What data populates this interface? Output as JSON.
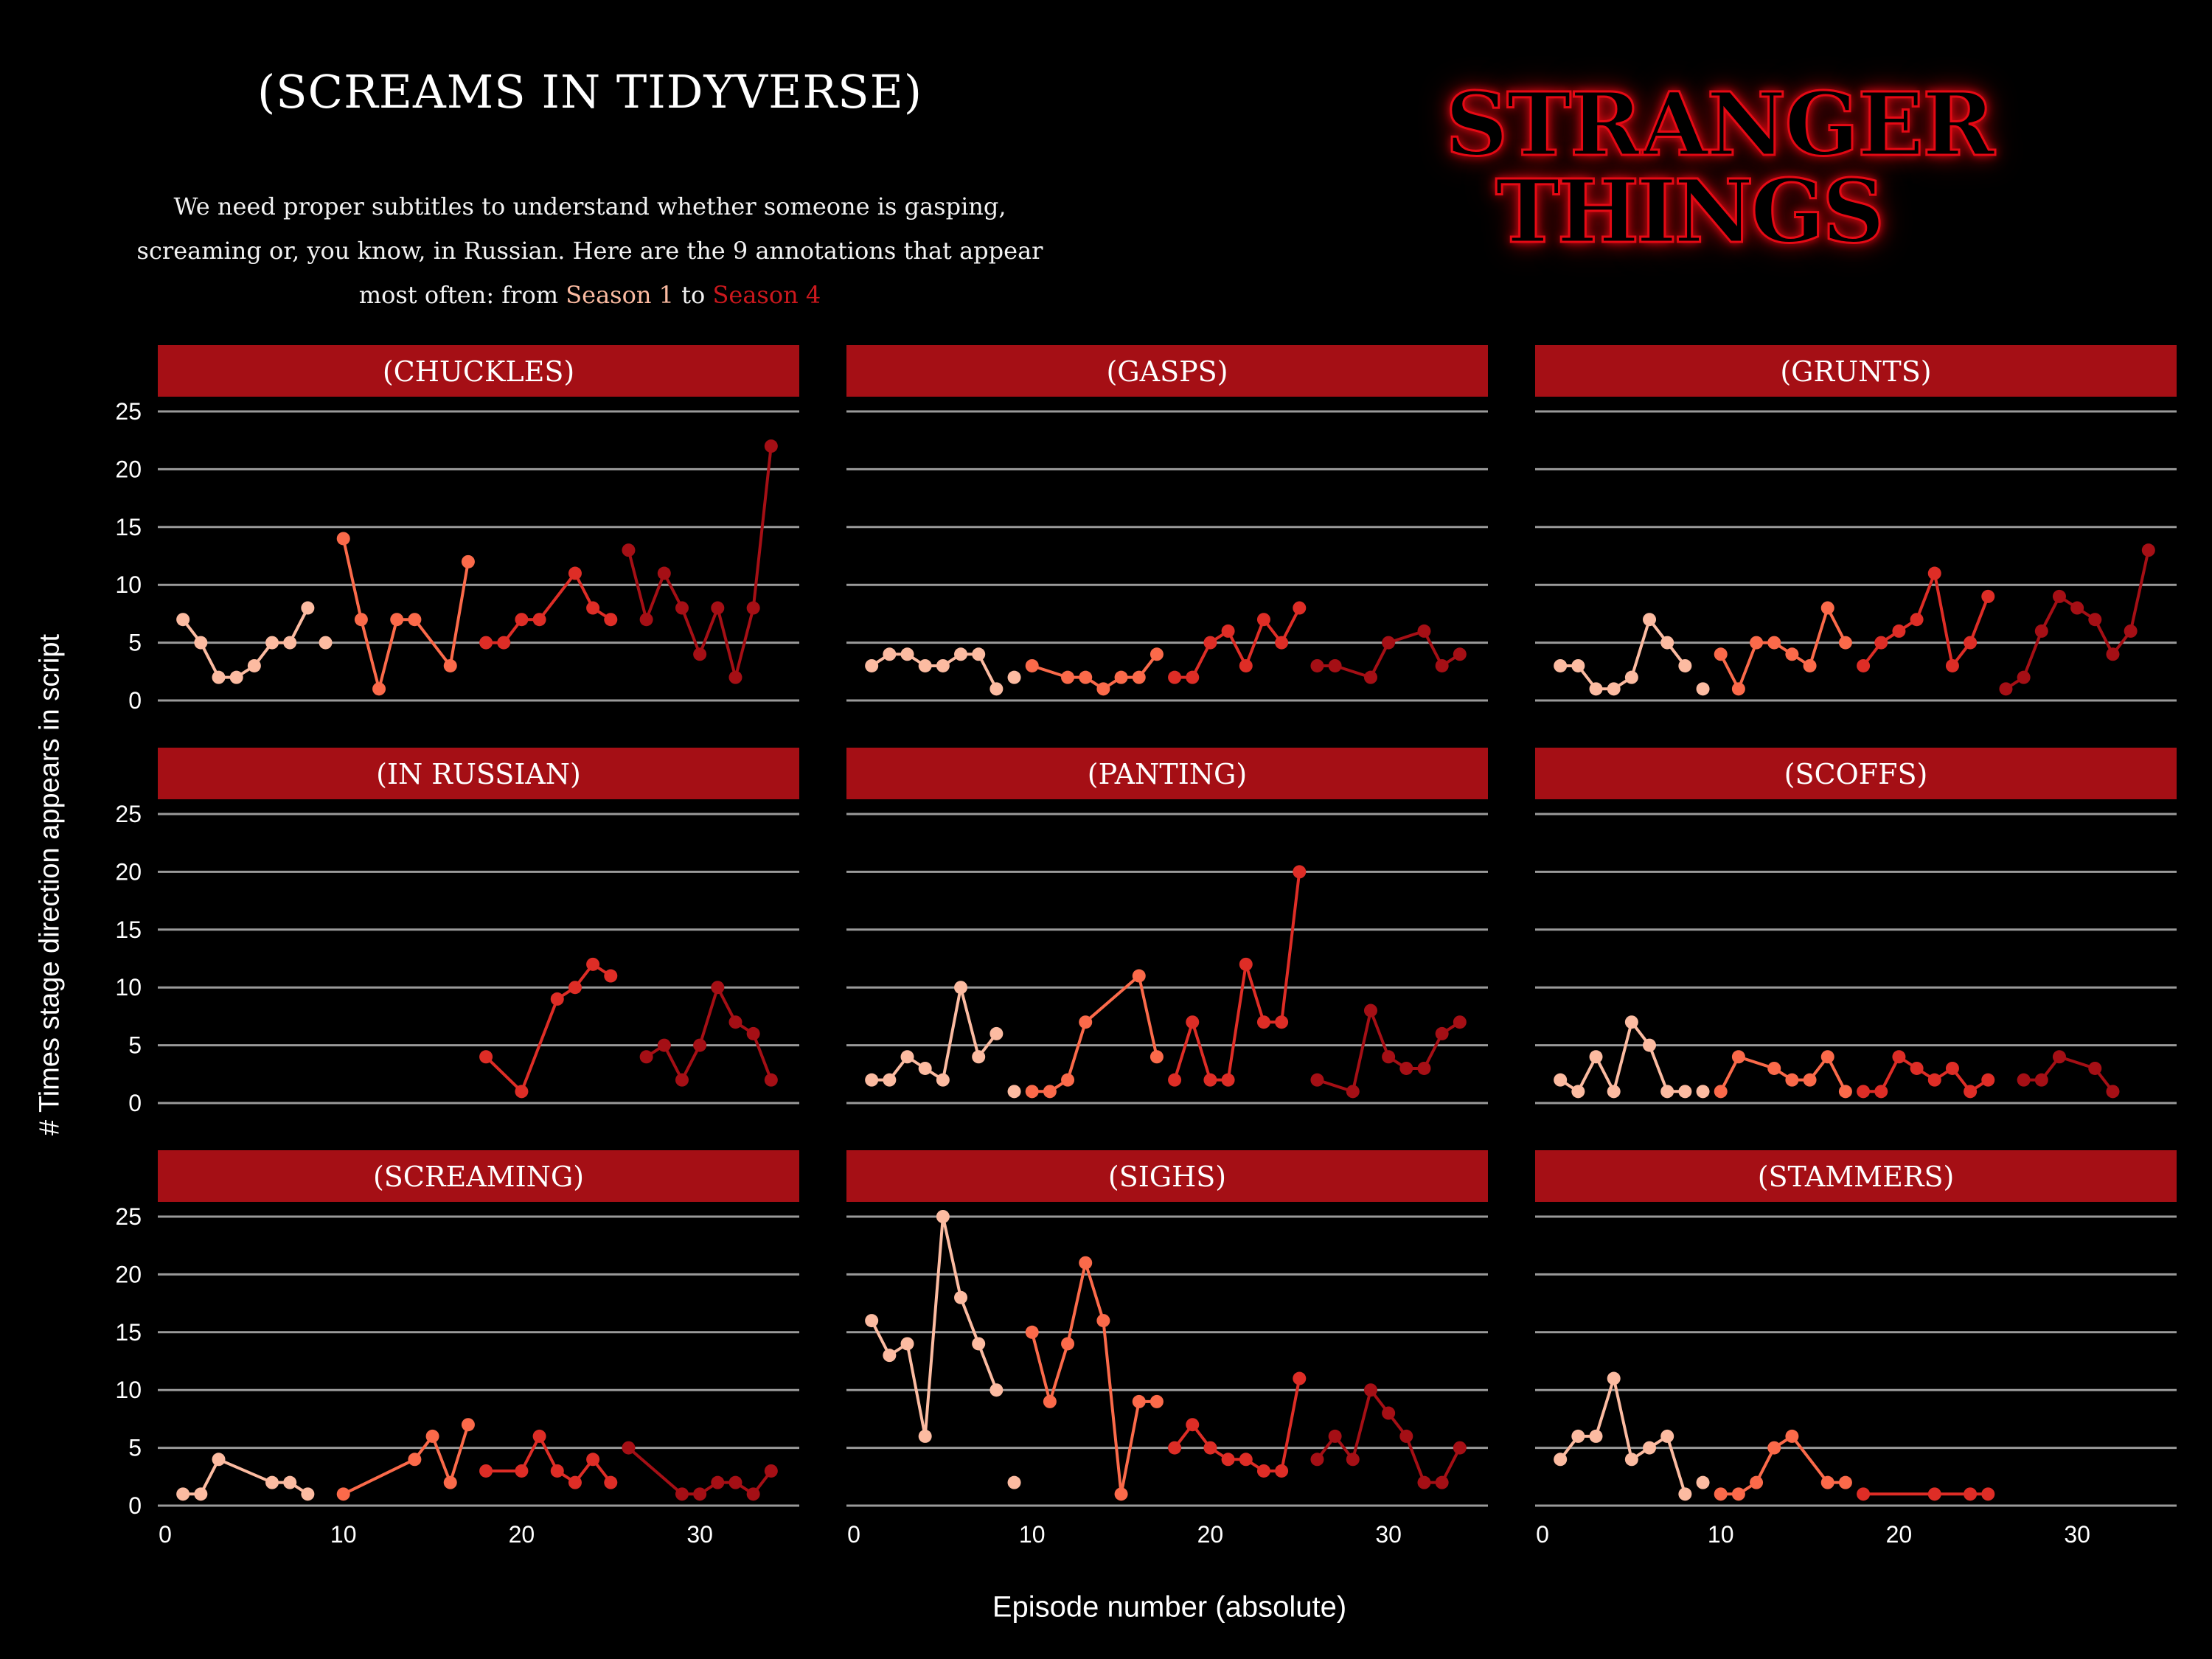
{
  "header": {
    "title": "(SCREAMS IN TIDYVERSE)",
    "subtitle_text": "We need proper subtitles to understand whether someone is gasping, screaming or, you know, in Russian. Here are the 9 annotations that appear most often: from",
    "season_first": "Season 1",
    "connector": "to",
    "season_last": "Season 4"
  },
  "logo": {
    "line1": "STRANGER",
    "line2": "THINGS"
  },
  "colors": {
    "background": "#000000",
    "strip": "#a50f15",
    "grid": "#9a9a9a",
    "season_colors": [
      "#fcbba1",
      "#fb6a4a",
      "#de2d26",
      "#a50f15"
    ]
  },
  "chart_data": {
    "type": "line",
    "layout": "facet-grid-3x3",
    "xlabel": "Episode number (absolute)",
    "ylabel": "# Times stage direction appears in script",
    "xlim": [
      0,
      35
    ],
    "ylim": [
      0,
      25
    ],
    "x_ticks": [
      0,
      10,
      20,
      30
    ],
    "y_ticks": [
      0,
      5,
      10,
      15,
      20,
      25
    ],
    "grid": "horizontal",
    "season_ranges": [
      [
        1,
        8
      ],
      [
        10,
        17
      ],
      [
        18,
        25
      ],
      [
        26,
        34
      ]
    ],
    "facets": [
      {
        "label": "(CHUCKLES)",
        "points": [
          [
            1,
            7
          ],
          [
            2,
            5
          ],
          [
            3,
            2
          ],
          [
            4,
            2
          ],
          [
            5,
            3
          ],
          [
            6,
            5
          ],
          [
            7,
            5
          ],
          [
            8,
            8
          ],
          [
            9,
            5
          ],
          [
            10,
            14
          ],
          [
            11,
            7
          ],
          [
            12,
            1
          ],
          [
            13,
            7
          ],
          [
            14,
            7
          ],
          [
            16,
            3
          ],
          [
            17,
            12
          ],
          [
            18,
            5
          ],
          [
            19,
            5
          ],
          [
            20,
            7
          ],
          [
            21,
            7
          ],
          [
            23,
            11
          ],
          [
            24,
            8
          ],
          [
            25,
            7
          ],
          [
            26,
            13
          ],
          [
            27,
            7
          ],
          [
            28,
            11
          ],
          [
            29,
            8
          ],
          [
            30,
            4
          ],
          [
            31,
            8
          ],
          [
            32,
            2
          ],
          [
            33,
            8
          ],
          [
            34,
            22
          ]
        ]
      },
      {
        "label": "(GASPS)",
        "points": [
          [
            1,
            3
          ],
          [
            2,
            4
          ],
          [
            3,
            4
          ],
          [
            4,
            3
          ],
          [
            5,
            3
          ],
          [
            6,
            4
          ],
          [
            7,
            4
          ],
          [
            8,
            1
          ],
          [
            9,
            2
          ],
          [
            10,
            3
          ],
          [
            12,
            2
          ],
          [
            13,
            2
          ],
          [
            14,
            1
          ],
          [
            15,
            2
          ],
          [
            16,
            2
          ],
          [
            17,
            4
          ],
          [
            18,
            2
          ],
          [
            19,
            2
          ],
          [
            20,
            5
          ],
          [
            21,
            6
          ],
          [
            22,
            3
          ],
          [
            23,
            7
          ],
          [
            24,
            5
          ],
          [
            25,
            8
          ],
          [
            26,
            3
          ],
          [
            27,
            3
          ],
          [
            29,
            2
          ],
          [
            30,
            5
          ],
          [
            32,
            6
          ],
          [
            33,
            3
          ],
          [
            34,
            4
          ]
        ]
      },
      {
        "label": "(GRUNTS)",
        "points": [
          [
            1,
            3
          ],
          [
            2,
            3
          ],
          [
            3,
            1
          ],
          [
            4,
            1
          ],
          [
            5,
            2
          ],
          [
            6,
            7
          ],
          [
            7,
            5
          ],
          [
            8,
            3
          ],
          [
            9,
            1
          ],
          [
            10,
            4
          ],
          [
            11,
            1
          ],
          [
            12,
            5
          ],
          [
            13,
            5
          ],
          [
            14,
            4
          ],
          [
            15,
            3
          ],
          [
            16,
            8
          ],
          [
            17,
            5
          ],
          [
            18,
            3
          ],
          [
            19,
            5
          ],
          [
            20,
            6
          ],
          [
            21,
            7
          ],
          [
            22,
            11
          ],
          [
            23,
            3
          ],
          [
            24,
            5
          ],
          [
            25,
            9
          ],
          [
            26,
            1
          ],
          [
            27,
            2
          ],
          [
            28,
            6
          ],
          [
            29,
            9
          ],
          [
            30,
            8
          ],
          [
            31,
            7
          ],
          [
            32,
            4
          ],
          [
            33,
            6
          ],
          [
            34,
            13
          ]
        ]
      },
      {
        "label": "(IN RUSSIAN)",
        "points": [
          [
            18,
            4
          ],
          [
            20,
            1
          ],
          [
            22,
            9
          ],
          [
            23,
            10
          ],
          [
            24,
            12
          ],
          [
            25,
            11
          ],
          [
            27,
            4
          ],
          [
            28,
            5
          ],
          [
            29,
            2
          ],
          [
            30,
            5
          ],
          [
            31,
            10
          ],
          [
            32,
            7
          ],
          [
            33,
            6
          ],
          [
            34,
            2
          ]
        ]
      },
      {
        "label": "(PANTING)",
        "points": [
          [
            1,
            2
          ],
          [
            2,
            2
          ],
          [
            3,
            4
          ],
          [
            4,
            3
          ],
          [
            5,
            2
          ],
          [
            6,
            10
          ],
          [
            7,
            4
          ],
          [
            8,
            6
          ],
          [
            9,
            1
          ],
          [
            10,
            1
          ],
          [
            11,
            1
          ],
          [
            12,
            2
          ],
          [
            13,
            7
          ],
          [
            16,
            11
          ],
          [
            17,
            4
          ],
          [
            18,
            2
          ],
          [
            19,
            7
          ],
          [
            20,
            2
          ],
          [
            21,
            2
          ],
          [
            22,
            12
          ],
          [
            23,
            7
          ],
          [
            24,
            7
          ],
          [
            25,
            20
          ],
          [
            26,
            2
          ],
          [
            28,
            1
          ],
          [
            29,
            8
          ],
          [
            30,
            4
          ],
          [
            31,
            3
          ],
          [
            32,
            3
          ],
          [
            33,
            6
          ],
          [
            34,
            7
          ]
        ]
      },
      {
        "label": "(SCOFFS)",
        "points": [
          [
            1,
            2
          ],
          [
            2,
            1
          ],
          [
            3,
            4
          ],
          [
            4,
            1
          ],
          [
            5,
            7
          ],
          [
            6,
            5
          ],
          [
            7,
            1
          ],
          [
            8,
            1
          ],
          [
            9,
            1
          ],
          [
            10,
            1
          ],
          [
            11,
            4
          ],
          [
            13,
            3
          ],
          [
            14,
            2
          ],
          [
            15,
            2
          ],
          [
            16,
            4
          ],
          [
            17,
            1
          ],
          [
            18,
            1
          ],
          [
            19,
            1
          ],
          [
            20,
            4
          ],
          [
            21,
            3
          ],
          [
            22,
            2
          ],
          [
            23,
            3
          ],
          [
            24,
            1
          ],
          [
            25,
            2
          ],
          [
            27,
            2
          ],
          [
            28,
            2
          ],
          [
            29,
            4
          ],
          [
            31,
            3
          ],
          [
            32,
            1
          ]
        ]
      },
      {
        "label": "(SCREAMING)",
        "points": [
          [
            1,
            1
          ],
          [
            2,
            1
          ],
          [
            3,
            4
          ],
          [
            6,
            2
          ],
          [
            7,
            2
          ],
          [
            8,
            1
          ],
          [
            10,
            1
          ],
          [
            14,
            4
          ],
          [
            15,
            6
          ],
          [
            16,
            2
          ],
          [
            17,
            7
          ],
          [
            18,
            3
          ],
          [
            20,
            3
          ],
          [
            21,
            6
          ],
          [
            22,
            3
          ],
          [
            23,
            2
          ],
          [
            24,
            4
          ],
          [
            25,
            2
          ],
          [
            26,
            5
          ],
          [
            29,
            1
          ],
          [
            30,
            1
          ],
          [
            31,
            2
          ],
          [
            32,
            2
          ],
          [
            33,
            1
          ],
          [
            34,
            3
          ]
        ]
      },
      {
        "label": "(SIGHS)",
        "points": [
          [
            1,
            16
          ],
          [
            2,
            13
          ],
          [
            3,
            14
          ],
          [
            4,
            6
          ],
          [
            5,
            25
          ],
          [
            6,
            18
          ],
          [
            7,
            14
          ],
          [
            8,
            10
          ],
          [
            9,
            2
          ],
          [
            10,
            15
          ],
          [
            11,
            9
          ],
          [
            12,
            14
          ],
          [
            13,
            21
          ],
          [
            14,
            16
          ],
          [
            15,
            1
          ],
          [
            16,
            9
          ],
          [
            17,
            9
          ],
          [
            18,
            5
          ],
          [
            19,
            7
          ],
          [
            20,
            5
          ],
          [
            21,
            4
          ],
          [
            22,
            4
          ],
          [
            23,
            3
          ],
          [
            24,
            3
          ],
          [
            25,
            11
          ],
          [
            26,
            4
          ],
          [
            27,
            6
          ],
          [
            28,
            4
          ],
          [
            29,
            10
          ],
          [
            30,
            8
          ],
          [
            31,
            6
          ],
          [
            32,
            2
          ],
          [
            33,
            2
          ],
          [
            34,
            5
          ]
        ]
      },
      {
        "label": "(STAMMERS)",
        "points": [
          [
            1,
            4
          ],
          [
            2,
            6
          ],
          [
            3,
            6
          ],
          [
            4,
            11
          ],
          [
            5,
            4
          ],
          [
            6,
            5
          ],
          [
            7,
            6
          ],
          [
            8,
            1
          ],
          [
            9,
            2
          ],
          [
            10,
            1
          ],
          [
            11,
            1
          ],
          [
            12,
            2
          ],
          [
            13,
            5
          ],
          [
            14,
            6
          ],
          [
            16,
            2
          ],
          [
            17,
            2
          ],
          [
            18,
            1
          ],
          [
            22,
            1
          ],
          [
            24,
            1
          ],
          [
            25,
            1
          ]
        ]
      }
    ]
  }
}
